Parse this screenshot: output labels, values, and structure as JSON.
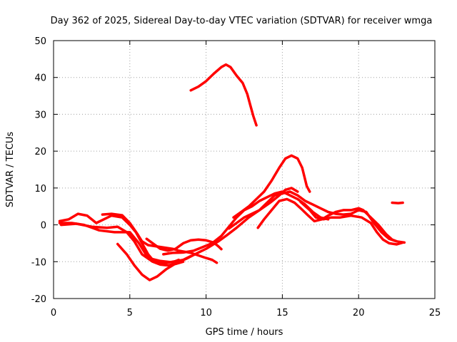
{
  "chart_data": {
    "type": "line",
    "title": "Day 362 of 2025, Sidereal Day-to-day VTEC variation (SDTVAR) for receiver wmga",
    "xlabel": "GPS time / hours",
    "ylabel": "SDTVAR / TECUs",
    "xlim": [
      0,
      25
    ],
    "ylim": [
      -20,
      50
    ],
    "xticks": [
      0,
      5,
      10,
      15,
      20,
      25
    ],
    "yticks": [
      -20,
      -10,
      0,
      10,
      20,
      30,
      40,
      50
    ],
    "x_tick_labels": [
      "0",
      "5",
      "10",
      "15",
      "20",
      "25"
    ],
    "y_tick_labels": [
      "-20",
      "-10",
      "0",
      "10",
      "20",
      "30",
      "40",
      "50"
    ],
    "grid": true,
    "color": "#ff0000",
    "series": [
      {
        "name": "track-1",
        "points": [
          [
            0.4,
            0.5
          ],
          [
            1.2,
            0.5
          ],
          [
            2.0,
            0.0
          ],
          [
            3.0,
            -1.5
          ],
          [
            4.0,
            -2.0
          ],
          [
            5.0,
            -2.0
          ],
          [
            5.6,
            -5.0
          ],
          [
            6.2,
            -9.0
          ],
          [
            7.0,
            -9.8
          ],
          [
            7.8,
            -10.2
          ],
          [
            8.2,
            -9.5
          ]
        ]
      },
      {
        "name": "track-2",
        "points": [
          [
            0.5,
            0.0
          ],
          [
            1.5,
            0.3
          ],
          [
            2.5,
            -0.5
          ],
          [
            3.5,
            -0.8
          ],
          [
            4.2,
            -0.5
          ],
          [
            4.8,
            -2.0
          ],
          [
            5.3,
            -4.5
          ],
          [
            5.8,
            -8.0
          ],
          [
            6.5,
            -10.0
          ],
          [
            7.0,
            -10.8
          ],
          [
            7.5,
            -11.0
          ],
          [
            8.0,
            -10.6
          ],
          [
            8.5,
            -10.0
          ]
        ]
      },
      {
        "name": "track-3",
        "points": [
          [
            0.4,
            1.0
          ],
          [
            1.0,
            1.5
          ],
          [
            1.6,
            3.0
          ],
          [
            2.2,
            2.5
          ],
          [
            2.8,
            0.5
          ],
          [
            3.3,
            1.5
          ],
          [
            3.8,
            2.5
          ],
          [
            4.5,
            2.0
          ],
          [
            5.0,
            0.0
          ],
          [
            5.4,
            -2.0
          ],
          [
            5.8,
            -5.0
          ],
          [
            6.2,
            -8.0
          ],
          [
            6.6,
            -10.0
          ],
          [
            7.2,
            -10.5
          ],
          [
            7.8,
            -10.0
          ],
          [
            8.5,
            -9.5
          ],
          [
            9.0,
            -8.5
          ]
        ]
      },
      {
        "name": "track-4",
        "points": [
          [
            3.2,
            2.8
          ],
          [
            3.8,
            3.0
          ],
          [
            4.5,
            2.6
          ],
          [
            5.0,
            0.5
          ],
          [
            5.5,
            -2.5
          ],
          [
            5.8,
            -4.5
          ],
          [
            6.2,
            -5.5
          ],
          [
            7.0,
            -6.0
          ],
          [
            7.8,
            -6.5
          ],
          [
            8.2,
            -7.0
          ],
          [
            8.6,
            -7.3
          ],
          [
            9.0,
            -7.6
          ],
          [
            9.5,
            -8.3
          ],
          [
            10.0,
            -9.0
          ],
          [
            10.4,
            -9.5
          ],
          [
            10.7,
            -10.3
          ]
        ]
      },
      {
        "name": "track-5",
        "points": [
          [
            6.1,
            -3.8
          ],
          [
            6.5,
            -5.0
          ],
          [
            7.0,
            -6.5
          ],
          [
            7.5,
            -7.0
          ],
          [
            8.0,
            -6.5
          ],
          [
            8.5,
            -5.0
          ],
          [
            9.0,
            -4.2
          ],
          [
            9.5,
            -4.0
          ],
          [
            10.0,
            -4.2
          ],
          [
            10.5,
            -4.8
          ],
          [
            10.8,
            -5.8
          ],
          [
            11.0,
            -6.6
          ]
        ]
      },
      {
        "name": "track-6",
        "points": [
          [
            4.2,
            -5.2
          ],
          [
            4.8,
            -8.0
          ],
          [
            5.3,
            -11.0
          ],
          [
            5.8,
            -13.5
          ],
          [
            6.3,
            -15.0
          ],
          [
            6.8,
            -14.0
          ],
          [
            7.4,
            -12.0
          ],
          [
            8.0,
            -10.5
          ],
          [
            8.8,
            -9.0
          ],
          [
            9.5,
            -7.5
          ],
          [
            10.0,
            -6.5
          ],
          [
            10.8,
            -4.5
          ],
          [
            11.3,
            -3.0
          ],
          [
            12.0,
            -0.8
          ],
          [
            12.8,
            2.0
          ],
          [
            13.5,
            4.0
          ],
          [
            14.2,
            6.0
          ],
          [
            14.8,
            8.0
          ],
          [
            15.2,
            9.5
          ],
          [
            15.6,
            10.0
          ],
          [
            16.0,
            9.0
          ]
        ]
      },
      {
        "name": "track-7",
        "points": [
          [
            7.2,
            -8.0
          ],
          [
            7.8,
            -7.6
          ],
          [
            8.5,
            -7.5
          ],
          [
            9.2,
            -7.0
          ],
          [
            9.8,
            -6.0
          ],
          [
            10.4,
            -5.0
          ],
          [
            11.0,
            -3.0
          ],
          [
            11.5,
            -0.5
          ],
          [
            12.0,
            2.0
          ],
          [
            12.5,
            4.0
          ],
          [
            13.0,
            5.0
          ],
          [
            13.5,
            6.5
          ],
          [
            14.0,
            7.5
          ],
          [
            14.5,
            8.5
          ],
          [
            15.0,
            9.0
          ],
          [
            15.5,
            8.0
          ],
          [
            16.0,
            7.0
          ],
          [
            16.5,
            5.5
          ],
          [
            17.0,
            3.5
          ],
          [
            17.5,
            2.0
          ],
          [
            18.0,
            1.5
          ]
        ]
      },
      {
        "name": "track-8",
        "points": [
          [
            11.5,
            -1.0
          ],
          [
            12.0,
            0.5
          ],
          [
            12.5,
            2.0
          ],
          [
            13.0,
            3.0
          ],
          [
            13.5,
            4.0
          ],
          [
            14.0,
            6.0
          ],
          [
            14.5,
            8.0
          ],
          [
            15.0,
            8.5
          ],
          [
            15.5,
            9.0
          ],
          [
            16.0,
            8.0
          ],
          [
            16.5,
            6.5
          ],
          [
            17.0,
            5.5
          ],
          [
            17.5,
            4.5
          ],
          [
            18.0,
            3.5
          ],
          [
            18.5,
            3.0
          ],
          [
            19.0,
            2.8
          ],
          [
            19.5,
            3.0
          ],
          [
            20.0,
            4.0
          ],
          [
            20.5,
            3.5
          ],
          [
            21.0,
            0.5
          ],
          [
            21.5,
            -2.0
          ],
          [
            22.0,
            -3.8
          ],
          [
            22.5,
            -4.5
          ],
          [
            23.0,
            -4.8
          ]
        ]
      },
      {
        "name": "track-9",
        "points": [
          [
            11.8,
            2.0
          ],
          [
            12.3,
            3.5
          ],
          [
            12.8,
            5.0
          ],
          [
            13.3,
            7.0
          ],
          [
            13.8,
            9.0
          ],
          [
            14.3,
            12.0
          ],
          [
            14.8,
            15.5
          ],
          [
            15.2,
            18.0
          ],
          [
            15.6,
            18.8
          ],
          [
            16.0,
            18.0
          ],
          [
            16.3,
            15.5
          ],
          [
            16.6,
            10.5
          ],
          [
            16.8,
            9.0
          ]
        ]
      },
      {
        "name": "track-10",
        "points": [
          [
            13.4,
            -0.8
          ],
          [
            13.8,
            1.5
          ],
          [
            14.3,
            4.0
          ],
          [
            14.8,
            6.5
          ],
          [
            15.3,
            7.0
          ],
          [
            15.8,
            6.0
          ],
          [
            16.2,
            4.5
          ],
          [
            16.7,
            2.5
          ],
          [
            17.1,
            1.0
          ],
          [
            17.6,
            1.5
          ],
          [
            18.0,
            2.5
          ],
          [
            18.5,
            3.5
          ],
          [
            19.0,
            4.0
          ],
          [
            19.5,
            4.0
          ],
          [
            20.0,
            4.5
          ],
          [
            20.3,
            4.0
          ],
          [
            20.8,
            2.0
          ],
          [
            21.3,
            0.0
          ],
          [
            21.8,
            -2.5
          ],
          [
            22.2,
            -4.0
          ],
          [
            22.5,
            -4.5
          ]
        ]
      },
      {
        "name": "track-11",
        "points": [
          [
            16.2,
            6.2
          ],
          [
            16.8,
            4.0
          ],
          [
            17.2,
            2.0
          ],
          [
            17.7,
            1.5
          ],
          [
            18.2,
            2.0
          ],
          [
            18.8,
            2.0
          ],
          [
            19.5,
            2.5
          ],
          [
            20.2,
            2.0
          ],
          [
            20.8,
            0.5
          ],
          [
            21.2,
            -2.0
          ],
          [
            21.6,
            -4.0
          ],
          [
            22.0,
            -5.0
          ],
          [
            22.5,
            -5.3
          ],
          [
            22.9,
            -4.8
          ]
        ]
      },
      {
        "name": "track-12",
        "points": [
          [
            9.0,
            36.5
          ],
          [
            9.5,
            37.5
          ],
          [
            10.0,
            39.0
          ],
          [
            10.5,
            41.0
          ],
          [
            11.0,
            42.8
          ],
          [
            11.3,
            43.5
          ],
          [
            11.6,
            42.8
          ],
          [
            12.0,
            40.5
          ],
          [
            12.4,
            38.5
          ],
          [
            12.7,
            35.5
          ],
          [
            12.9,
            32.5
          ],
          [
            13.1,
            29.5
          ],
          [
            13.3,
            27.0
          ]
        ]
      },
      {
        "name": "track-13",
        "points": [
          [
            22.2,
            6.0
          ],
          [
            22.6,
            5.9
          ],
          [
            22.9,
            6.0
          ]
        ]
      }
    ]
  }
}
